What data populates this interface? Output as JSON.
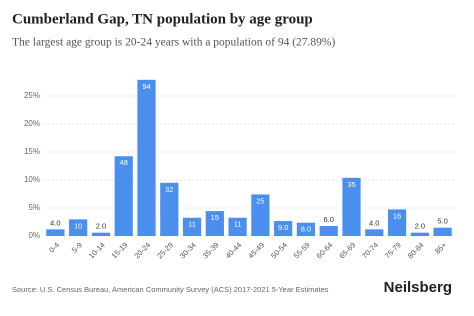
{
  "chart_data": {
    "type": "bar",
    "title": "Cumberland Gap, TN population by age group",
    "subtitle": "The largest age group is 20-24 years with a population of 94 (27.89%)",
    "categories": [
      "0-4",
      "5-9",
      "10-14",
      "15-19",
      "20-24",
      "25-29",
      "30-34",
      "35-39",
      "40-44",
      "45-49",
      "50-54",
      "55-59",
      "60-64",
      "65-69",
      "70-74",
      "75-79",
      "80-84",
      "85+"
    ],
    "values": [
      1.19,
      2.97,
      0.59,
      14.24,
      27.89,
      9.5,
      3.26,
      4.45,
      3.26,
      7.42,
      2.67,
      2.37,
      1.78,
      10.39,
      1.19,
      4.75,
      0.59,
      1.48
    ],
    "population_labels": [
      "4.0",
      "10",
      "2.0",
      "48",
      "94",
      "32",
      "11",
      "15",
      "11",
      "25",
      "9.0",
      "8.0",
      "6.0",
      "35",
      "4.0",
      "16",
      "2.0",
      "5.0"
    ],
    "color": "#4a8fee",
    "ylim": [
      0,
      30
    ],
    "yticks": [
      {
        "value": 0,
        "label": "0%"
      },
      {
        "value": 5,
        "label": "5%"
      },
      {
        "value": 10,
        "label": "10%"
      },
      {
        "value": 15,
        "label": "15%"
      },
      {
        "value": 20,
        "label": "20%"
      },
      {
        "value": 25,
        "label": "25%"
      }
    ],
    "grid": true,
    "source": "Source: U.S. Census Bureau, American Community Survey (ACS) 2017-2021 5-Year Estimates",
    "brand": "Neilsberg"
  }
}
